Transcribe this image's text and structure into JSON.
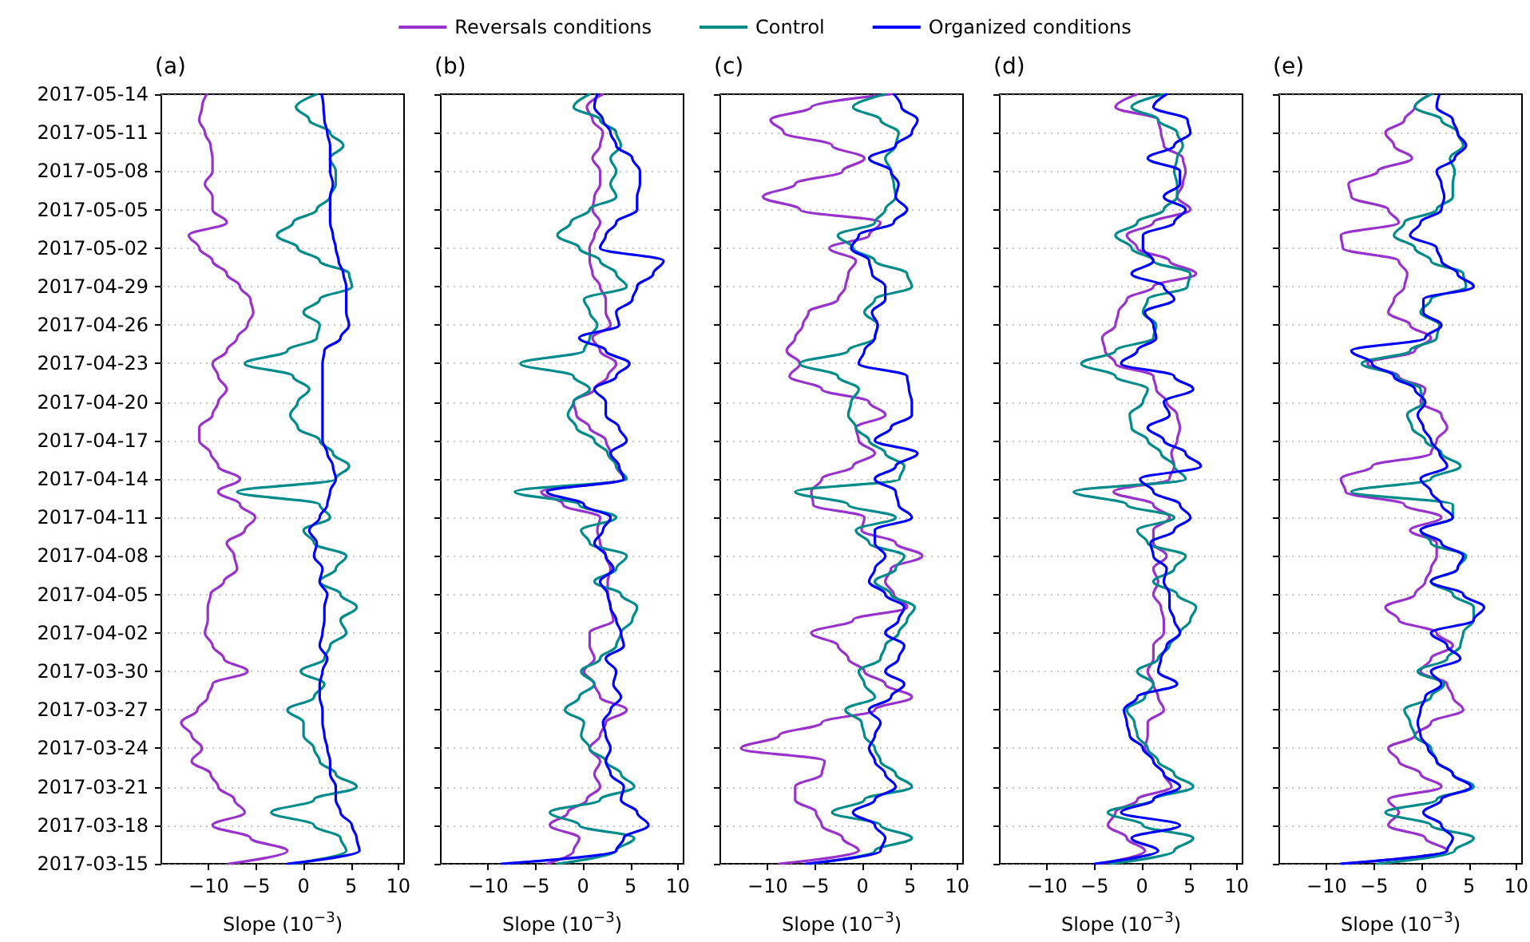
{
  "chart_data": [
    {
      "type": "line",
      "orientation": "horizontal",
      "title": "(a)",
      "xlabel": "Slope (10$^{−3}$)",
      "legend": "top",
      "grid": "y",
      "xlim": [
        -15,
        10.6
      ],
      "xticks": [
        -10,
        -5,
        0,
        5,
        10
      ],
      "ylim": [
        "2017-03-15",
        "2017-05-14"
      ],
      "yticks": [
        "2017-03-15",
        "2017-03-18",
        "2017-03-21",
        "2017-03-24",
        "2017-03-27",
        "2017-03-30",
        "2017-04-02",
        "2017-04-05",
        "2017-04-08",
        "2017-04-11",
        "2017-04-14",
        "2017-04-17",
        "2017-04-20",
        "2017-04-23",
        "2017-04-26",
        "2017-04-29",
        "2017-05-02",
        "2017-05-05",
        "2017-05-08",
        "2017-05-11",
        "2017-05-14"
      ],
      "x": [
        "2017-03-15",
        "2017-03-16",
        "2017-03-17",
        "2017-03-18",
        "2017-03-19",
        "2017-03-20",
        "2017-03-21",
        "2017-03-22",
        "2017-03-23",
        "2017-03-24",
        "2017-03-25",
        "2017-03-26",
        "2017-03-27",
        "2017-03-28",
        "2017-03-29",
        "2017-03-30",
        "2017-03-31",
        "2017-04-01",
        "2017-04-02",
        "2017-04-03",
        "2017-04-04",
        "2017-04-05",
        "2017-04-06",
        "2017-04-07",
        "2017-04-08",
        "2017-04-09",
        "2017-04-10",
        "2017-04-11",
        "2017-04-12",
        "2017-04-13",
        "2017-04-14",
        "2017-04-15",
        "2017-04-16",
        "2017-04-17",
        "2017-04-18",
        "2017-04-19",
        "2017-04-20",
        "2017-04-21",
        "2017-04-22",
        "2017-04-23",
        "2017-04-24",
        "2017-04-25",
        "2017-04-26",
        "2017-04-27",
        "2017-04-28",
        "2017-04-29",
        "2017-04-30",
        "2017-05-01",
        "2017-05-02",
        "2017-05-03",
        "2017-05-04",
        "2017-05-05",
        "2017-05-06",
        "2017-05-07",
        "2017-05-08",
        "2017-05-09",
        "2017-05-10",
        "2017-05-11",
        "2017-05-12",
        "2017-05-13",
        "2017-05-14"
      ],
      "series": [
        {
          "name": "Reversals conditions",
          "color": "#9932cc",
          "values": [
            -7.9,
            -1.7,
            -5.6,
            -9.6,
            -6.2,
            -7.3,
            -9.0,
            -9.8,
            -11.8,
            -10.7,
            -11.8,
            -12.9,
            -11.2,
            -10.1,
            -9.6,
            -5.9,
            -8.4,
            -9.6,
            -10.4,
            -10.1,
            -10.1,
            -9.8,
            -8.4,
            -7.0,
            -7.3,
            -8.1,
            -6.2,
            -5.1,
            -6.7,
            -9.0,
            -6.7,
            -9.0,
            -9.8,
            -11.0,
            -11.0,
            -9.6,
            -9.0,
            -8.1,
            -9.0,
            -9.6,
            -8.1,
            -7.0,
            -5.9,
            -5.3,
            -5.6,
            -6.7,
            -8.1,
            -9.6,
            -11.0,
            -12.1,
            -8.1,
            -9.6,
            -9.6,
            -10.4,
            -9.6,
            -9.6,
            -9.8,
            -10.4,
            -11.0,
            -10.7,
            -10.2
          ]
        },
        {
          "name": "Control",
          "color": "#008b8b",
          "values": [
            -1.1,
            4.5,
            3.9,
            1.1,
            -3.4,
            1.1,
            5.6,
            3.4,
            1.7,
            1.1,
            0,
            0,
            -1.7,
            1.1,
            2.2,
            -0.3,
            2.2,
            2.8,
            4.5,
            3.9,
            5.6,
            3.9,
            1.7,
            3.4,
            4.5,
            1.1,
            0,
            2.8,
            1.7,
            -7.0,
            3.4,
            4.8,
            3.1,
            1.7,
            -0.6,
            -1.4,
            -0.6,
            0.6,
            -1.1,
            -6.2,
            -1.7,
            1.4,
            1.7,
            0,
            1.7,
            5.1,
            4.8,
            1.7,
            -0.6,
            -2.8,
            -1.1,
            1.4,
            2.8,
            3.4,
            3.4,
            2.8,
            4.2,
            2.8,
            0.6,
            -0.8,
            1.4
          ]
        },
        {
          "name": "Organized conditions",
          "color": "#0000ff",
          "values": [
            -1.7,
            5.9,
            5.6,
            5.1,
            3.9,
            3.4,
            3.4,
            2.8,
            2.8,
            2.5,
            2.2,
            2.0,
            2.0,
            1.7,
            1.7,
            2.0,
            2.5,
            1.7,
            2.0,
            2.2,
            2.2,
            2.5,
            1.7,
            2.0,
            1.1,
            1.4,
            0.6,
            1.7,
            2.5,
            2.8,
            3.4,
            3.1,
            2.5,
            2.0,
            2.0,
            2.0,
            2.0,
            2.0,
            2.0,
            2.0,
            2.2,
            3.9,
            4.8,
            4.5,
            4.5,
            4.5,
            4.2,
            3.7,
            3.4,
            3.1,
            2.8,
            2.8,
            2.8,
            3.1,
            2.8,
            2.8,
            2.8,
            2.5,
            2.2,
            2.1,
            1.9
          ]
        }
      ]
    },
    {
      "type": "line",
      "orientation": "horizontal",
      "title": "(b)",
      "xlabel": "Slope (10$^{−3}$)",
      "grid": "y",
      "tick_labels": "x",
      "xlim": [
        -15,
        10.6
      ],
      "xticks": [
        -10,
        -5,
        0,
        5,
        10
      ],
      "ylim": [
        "2017-03-15",
        "2017-05-14"
      ],
      "yticks": [
        "2017-03-15",
        "2017-03-18",
        "2017-03-21",
        "2017-03-24",
        "2017-03-27",
        "2017-03-30",
        "2017-04-02",
        "2017-04-05",
        "2017-04-08",
        "2017-04-11",
        "2017-04-14",
        "2017-04-17",
        "2017-04-20",
        "2017-04-23",
        "2017-04-26",
        "2017-04-29",
        "2017-05-02",
        "2017-05-05",
        "2017-05-08",
        "2017-05-11",
        "2017-05-14"
      ],
      "x": [
        "2017-03-15",
        "2017-03-16",
        "2017-03-17",
        "2017-03-18",
        "2017-03-19",
        "2017-03-20",
        "2017-03-21",
        "2017-03-22",
        "2017-03-23",
        "2017-03-24",
        "2017-03-25",
        "2017-03-26",
        "2017-03-27",
        "2017-03-28",
        "2017-03-29",
        "2017-03-30",
        "2017-03-31",
        "2017-04-01",
        "2017-04-02",
        "2017-04-03",
        "2017-04-04",
        "2017-04-05",
        "2017-04-06",
        "2017-04-07",
        "2017-04-08",
        "2017-04-09",
        "2017-04-10",
        "2017-04-11",
        "2017-04-12",
        "2017-04-13",
        "2017-04-14",
        "2017-04-15",
        "2017-04-16",
        "2017-04-17",
        "2017-04-18",
        "2017-04-19",
        "2017-04-20",
        "2017-04-21",
        "2017-04-22",
        "2017-04-23",
        "2017-04-24",
        "2017-04-25",
        "2017-04-26",
        "2017-04-27",
        "2017-04-28",
        "2017-04-29",
        "2017-04-30",
        "2017-05-01",
        "2017-05-02",
        "2017-05-03",
        "2017-05-04",
        "2017-05-05",
        "2017-05-06",
        "2017-05-07",
        "2017-05-08",
        "2017-05-09",
        "2017-05-10",
        "2017-05-11",
        "2017-05-12",
        "2017-05-13",
        "2017-05-14"
      ],
      "series": [
        {
          "color": "#9932cc",
          "values": [
            -3.8,
            -1.0,
            -0.4,
            -3.5,
            -1.6,
            0.4,
            1.8,
            1.2,
            1.8,
            0.7,
            1.8,
            2.4,
            4.6,
            1.8,
            1.2,
            0.1,
            1.2,
            0.7,
            0.7,
            3.2,
            2.9,
            2.6,
            2.6,
            2.9,
            2.4,
            1.8,
            1.5,
            1.8,
            -2.1,
            -4.4,
            4.3,
            3.5,
            2.9,
            2.4,
            0.7,
            -0.7,
            -1.0,
            1.2,
            2.6,
            3.5,
            1.8,
            1.0,
            2.9,
            2.4,
            2.4,
            1.8,
            1.0,
            0.7,
            0.7,
            1.2,
            1.8,
            1.0,
            1.2,
            1.8,
            1.8,
            1.0,
            1.8,
            2.1,
            1.0,
            0.4,
            2.1
          ]
        },
        {
          "color": "#008b8b",
          "values": [
            -2.7,
            3.5,
            5.4,
            -0.4,
            -3.5,
            1.8,
            5.4,
            4.0,
            2.4,
            0.7,
            -0.2,
            0.1,
            -1.9,
            -0.4,
            1.2,
            -0.2,
            1.8,
            3.5,
            4.0,
            5.2,
            5.7,
            4.0,
            1.2,
            3.5,
            4.6,
            0.7,
            -0.2,
            3.5,
            -0.4,
            -7.2,
            4.6,
            3.5,
            2.6,
            1.2,
            -0.7,
            -1.6,
            -1.0,
            0.7,
            -1.0,
            -6.6,
            0.1,
            0.7,
            1.5,
            0.7,
            0.1,
            4.6,
            3.5,
            1.8,
            -0.4,
            -2.7,
            -1.3,
            0.7,
            3.5,
            2.9,
            3.5,
            2.9,
            4.0,
            3.5,
            1.8,
            -1.0,
            0.7
          ]
        },
        {
          "color": "#0000ff",
          "values": [
            -8.6,
            3.5,
            4.3,
            6.9,
            5.7,
            4.0,
            4.3,
            2.9,
            2.4,
            2.9,
            2.4,
            2.1,
            2.9,
            4.0,
            3.2,
            3.5,
            2.4,
            4.3,
            4.0,
            3.5,
            2.9,
            2.6,
            1.8,
            3.2,
            2.4,
            1.2,
            2.1,
            2.9,
            0.1,
            -3.8,
            4.3,
            3.8,
            2.9,
            4.6,
            3.8,
            2.4,
            2.4,
            1.2,
            3.5,
            4.9,
            2.4,
            -0.4,
            3.8,
            3.5,
            5.2,
            5.7,
            7.4,
            8.5,
            1.8,
            2.4,
            3.5,
            5.7,
            5.7,
            6.0,
            6.0,
            5.2,
            3.5,
            2.9,
            2.1,
            1.2,
            1.5
          ]
        }
      ]
    },
    {
      "type": "line",
      "orientation": "horizontal",
      "title": "(c)",
      "xlabel": "Slope (10$^{−3}$)",
      "grid": "y",
      "tick_labels": "x",
      "xlim": [
        -15,
        10.6
      ],
      "xticks": [
        -10,
        -5,
        0,
        5,
        10
      ],
      "ylim": [
        "2017-03-15",
        "2017-05-14"
      ],
      "yticks": [
        "2017-03-15",
        "2017-03-18",
        "2017-03-21",
        "2017-03-24",
        "2017-03-27",
        "2017-03-30",
        "2017-04-02",
        "2017-04-05",
        "2017-04-08",
        "2017-04-11",
        "2017-04-14",
        "2017-04-17",
        "2017-04-20",
        "2017-04-23",
        "2017-04-26",
        "2017-04-29",
        "2017-05-02",
        "2017-05-05",
        "2017-05-08",
        "2017-05-11",
        "2017-05-14"
      ],
      "x": [
        "2017-03-15",
        "2017-03-16",
        "2017-03-17",
        "2017-03-18",
        "2017-03-19",
        "2017-03-20",
        "2017-03-21",
        "2017-03-22",
        "2017-03-23",
        "2017-03-24",
        "2017-03-25",
        "2017-03-26",
        "2017-03-27",
        "2017-03-28",
        "2017-03-29",
        "2017-03-30",
        "2017-03-31",
        "2017-04-01",
        "2017-04-02",
        "2017-04-03",
        "2017-04-04",
        "2017-04-05",
        "2017-04-06",
        "2017-04-07",
        "2017-04-08",
        "2017-04-09",
        "2017-04-10",
        "2017-04-11",
        "2017-04-12",
        "2017-04-13",
        "2017-04-14",
        "2017-04-15",
        "2017-04-16",
        "2017-04-17",
        "2017-04-18",
        "2017-04-19",
        "2017-04-20",
        "2017-04-21",
        "2017-04-22",
        "2017-04-23",
        "2017-04-24",
        "2017-04-25",
        "2017-04-26",
        "2017-04-27",
        "2017-04-28",
        "2017-04-29",
        "2017-04-30",
        "2017-05-01",
        "2017-05-02",
        "2017-05-03",
        "2017-05-04",
        "2017-05-05",
        "2017-05-06",
        "2017-05-07",
        "2017-05-08",
        "2017-05-09",
        "2017-05-10",
        "2017-05-11",
        "2017-05-12",
        "2017-05-13",
        "2017-05-14"
      ],
      "series": [
        {
          "color": "#9932cc",
          "values": [
            -8.8,
            -0.4,
            -2.1,
            -4.3,
            -4.9,
            -7.1,
            -7.1,
            -4.3,
            -4.0,
            -12.8,
            -8.8,
            -4.3,
            1.3,
            5.2,
            2.4,
            0.2,
            -1.5,
            -2.6,
            -5.4,
            -1.0,
            4.7,
            3.3,
            2.4,
            3.0,
            6.3,
            3.5,
            -0.1,
            0.2,
            -5.2,
            -5.4,
            -4.3,
            -1.0,
            1.3,
            -0.4,
            -0.7,
            2.4,
            0.7,
            -4.3,
            -7.7,
            -6.6,
            -8.0,
            -7.1,
            -6.3,
            -5.7,
            -2.6,
            -1.8,
            -1.5,
            -0.7,
            -3.5,
            0.7,
            1.9,
            -6.6,
            -10.5,
            -7.1,
            -2.1,
            0.2,
            -3.2,
            -8.3,
            -9.7,
            -5.4,
            3.0
          ]
        },
        {
          "color": "#008b8b",
          "values": [
            -5.4,
            1.3,
            5.2,
            1.9,
            -3.2,
            0.2,
            5.2,
            3.5,
            1.9,
            1.3,
            0.2,
            -0.1,
            -1.8,
            1.3,
            0.2,
            -0.4,
            1.9,
            2.4,
            3.8,
            4.7,
            5.5,
            3.0,
            1.3,
            3.5,
            4.4,
            0.7,
            -0.7,
            3.5,
            -1.5,
            -7.1,
            3.9,
            4.4,
            2.4,
            0.7,
            -0.7,
            -1.5,
            -1.2,
            -0.4,
            -2.6,
            -6.6,
            -1.5,
            1.3,
            1.6,
            0.2,
            1.3,
            5.2,
            4.7,
            1.3,
            -1.0,
            -2.6,
            1.3,
            2.4,
            3.5,
            3.3,
            3.0,
            2.4,
            3.5,
            3.8,
            1.9,
            -1.0,
            2.4
          ]
        },
        {
          "color": "#0000ff",
          "values": [
            -6.0,
            1.9,
            2.4,
            1.3,
            -1.0,
            1.3,
            3.5,
            2.4,
            1.3,
            0.7,
            1.3,
            1.9,
            0.7,
            3.0,
            4.4,
            2.4,
            3.8,
            4.4,
            2.4,
            3.8,
            4.4,
            2.4,
            0.7,
            1.3,
            2.4,
            1.3,
            1.3,
            5.2,
            3.8,
            3.5,
            1.3,
            3.5,
            5.8,
            1.3,
            3.0,
            5.2,
            5.2,
            4.9,
            4.7,
            -0.4,
            0.2,
            1.3,
            1.6,
            1.0,
            2.4,
            2.4,
            1.0,
            0.7,
            -1.2,
            -0.4,
            3.3,
            4.7,
            3.5,
            3.8,
            3.0,
            0.7,
            3.5,
            5.2,
            5.8,
            4.1,
            3.3
          ]
        }
      ]
    },
    {
      "type": "line",
      "orientation": "horizontal",
      "title": "(d)",
      "xlabel": "Slope (10$^{−3}$)",
      "grid": "y",
      "tick_labels": "x",
      "xlim": [
        -15,
        10.6
      ],
      "xticks": [
        -10,
        -5,
        0,
        5,
        10
      ],
      "ylim": [
        "2017-03-15",
        "2017-05-14"
      ],
      "yticks": [
        "2017-03-15",
        "2017-03-18",
        "2017-03-21",
        "2017-03-24",
        "2017-03-27",
        "2017-03-30",
        "2017-04-02",
        "2017-04-05",
        "2017-04-08",
        "2017-04-11",
        "2017-04-14",
        "2017-04-17",
        "2017-04-20",
        "2017-04-23",
        "2017-04-26",
        "2017-04-29",
        "2017-05-02",
        "2017-05-05",
        "2017-05-08",
        "2017-05-11",
        "2017-05-14"
      ],
      "x": [
        "2017-03-15",
        "2017-03-16",
        "2017-03-17",
        "2017-03-18",
        "2017-03-19",
        "2017-03-20",
        "2017-03-21",
        "2017-03-22",
        "2017-03-23",
        "2017-03-24",
        "2017-03-25",
        "2017-03-26",
        "2017-03-27",
        "2017-03-28",
        "2017-03-29",
        "2017-03-30",
        "2017-03-31",
        "2017-04-01",
        "2017-04-02",
        "2017-04-03",
        "2017-04-04",
        "2017-04-05",
        "2017-04-06",
        "2017-04-07",
        "2017-04-08",
        "2017-04-09",
        "2017-04-10",
        "2017-04-11",
        "2017-04-12",
        "2017-04-13",
        "2017-04-14",
        "2017-04-15",
        "2017-04-16",
        "2017-04-17",
        "2017-04-18",
        "2017-04-19",
        "2017-04-20",
        "2017-04-21",
        "2017-04-22",
        "2017-04-23",
        "2017-04-24",
        "2017-04-25",
        "2017-04-26",
        "2017-04-27",
        "2017-04-28",
        "2017-04-29",
        "2017-04-30",
        "2017-05-01",
        "2017-05-02",
        "2017-05-03",
        "2017-05-04",
        "2017-05-05",
        "2017-05-06",
        "2017-05-07",
        "2017-05-08",
        "2017-05-09",
        "2017-05-10",
        "2017-05-11",
        "2017-05-12",
        "2017-05-13",
        "2017-05-14"
      ],
      "series": [
        {
          "color": "#9932cc",
          "values": [
            -4.4,
            0.3,
            -1.6,
            -3.6,
            -2.8,
            -0.5,
            3.1,
            2.3,
            1.2,
            0.3,
            0.6,
            0.6,
            2.3,
            1.7,
            1.2,
            0.6,
            1.2,
            1.2,
            2.3,
            2.3,
            2.0,
            1.2,
            1.7,
            1.2,
            2.6,
            1.2,
            1.2,
            2.9,
            1.2,
            -3.0,
            2.9,
            3.4,
            3.1,
            3.7,
            4.0,
            3.7,
            2.6,
            1.5,
            1.2,
            -2.8,
            -3.9,
            -4.2,
            -2.8,
            -2.5,
            -1.6,
            1.2,
            5.7,
            2.9,
            -0.5,
            -1.6,
            1.2,
            5.1,
            3.7,
            4.3,
            4.6,
            4.3,
            2.3,
            2.0,
            1.7,
            -2.8,
            -0.5
          ]
        },
        {
          "color": "#008b8b",
          "values": [
            -3.3,
            3.4,
            5.4,
            0.1,
            -3.6,
            1.2,
            5.4,
            3.4,
            1.7,
            0.6,
            -0.5,
            -0.8,
            -1.6,
            0.3,
            1.2,
            -0.5,
            1.7,
            2.9,
            4.0,
            5.1,
            5.7,
            3.7,
            1.2,
            3.4,
            4.6,
            0.6,
            -0.5,
            3.4,
            -1.6,
            -7.2,
            4.6,
            3.4,
            2.0,
            0.6,
            -1.1,
            -1.3,
            0.1,
            0.6,
            -2.8,
            -6.4,
            -2.8,
            1.2,
            1.5,
            0.1,
            0.6,
            4.8,
            5.1,
            1.2,
            -1.1,
            -2.8,
            -0.5,
            2.3,
            3.7,
            3.7,
            3.4,
            3.7,
            4.3,
            3.7,
            1.7,
            -1.1,
            2.3
          ]
        },
        {
          "color": "#0000ff",
          "values": [
            -5.0,
            1.7,
            -1.1,
            4.0,
            -2.2,
            1.2,
            4.0,
            2.3,
            1.2,
            0.1,
            -1.3,
            -1.6,
            -1.9,
            -0.5,
            3.7,
            1.7,
            2.0,
            2.6,
            4.0,
            3.4,
            2.9,
            2.9,
            2.3,
            2.6,
            1.2,
            0.9,
            3.4,
            5.1,
            4.0,
            1.2,
            -0.2,
            6.2,
            4.6,
            2.3,
            0.6,
            2.9,
            2.3,
            5.4,
            3.4,
            -2.2,
            -0.5,
            1.5,
            1.2,
            0.3,
            3.4,
            2.3,
            -1.1,
            1.2,
            0.1,
            0.1,
            3.4,
            4.6,
            2.3,
            4.0,
            4.0,
            0.6,
            3.4,
            5.1,
            4.8,
            1.2,
            2.6
          ]
        }
      ]
    },
    {
      "type": "line",
      "orientation": "horizontal",
      "title": "(e)",
      "xlabel": "Slope (10$^{−3}$)",
      "grid": "y",
      "tick_labels": "x",
      "xlim": [
        -15,
        10.6
      ],
      "xticks": [
        -10,
        -5,
        0,
        5,
        10
      ],
      "ylim": [
        "2017-03-15",
        "2017-05-14"
      ],
      "yticks": [
        "2017-03-15",
        "2017-03-18",
        "2017-03-21",
        "2017-03-24",
        "2017-03-27",
        "2017-03-30",
        "2017-04-02",
        "2017-04-05",
        "2017-04-08",
        "2017-04-11",
        "2017-04-14",
        "2017-04-17",
        "2017-04-20",
        "2017-04-23",
        "2017-04-26",
        "2017-04-29",
        "2017-05-02",
        "2017-05-05",
        "2017-05-08",
        "2017-05-11",
        "2017-05-14"
      ],
      "x": [
        "2017-03-15",
        "2017-03-16",
        "2017-03-17",
        "2017-03-18",
        "2017-03-19",
        "2017-03-20",
        "2017-03-21",
        "2017-03-22",
        "2017-03-23",
        "2017-03-24",
        "2017-03-25",
        "2017-03-26",
        "2017-03-27",
        "2017-03-28",
        "2017-03-29",
        "2017-03-30",
        "2017-03-31",
        "2017-04-01",
        "2017-04-02",
        "2017-04-03",
        "2017-04-04",
        "2017-04-05",
        "2017-04-06",
        "2017-04-07",
        "2017-04-08",
        "2017-04-09",
        "2017-04-10",
        "2017-04-11",
        "2017-04-12",
        "2017-04-13",
        "2017-04-14",
        "2017-04-15",
        "2017-04-16",
        "2017-04-17",
        "2017-04-18",
        "2017-04-19",
        "2017-04-20",
        "2017-04-21",
        "2017-04-22",
        "2017-04-23",
        "2017-04-24",
        "2017-04-25",
        "2017-04-26",
        "2017-04-27",
        "2017-04-28",
        "2017-04-29",
        "2017-04-30",
        "2017-05-01",
        "2017-05-02",
        "2017-05-03",
        "2017-05-04",
        "2017-05-05",
        "2017-05-06",
        "2017-05-07",
        "2017-05-08",
        "2017-05-09",
        "2017-05-10",
        "2017-05-11",
        "2017-05-12",
        "2017-05-13",
        "2017-05-14"
      ],
      "series": [
        {
          "color": "#9932cc",
          "values": [
            -8.5,
            2.7,
            0.4,
            -3.5,
            -2.4,
            -3.5,
            2.1,
            -0.1,
            -2.4,
            -3.5,
            -0.7,
            1.0,
            4.4,
            3.3,
            2.7,
            -0.1,
            1.0,
            3.3,
            1.6,
            -2.4,
            -3.8,
            -0.7,
            0.4,
            1.0,
            1.6,
            1.6,
            -1.2,
            2.1,
            -1.8,
            -8.0,
            -8.5,
            -5.2,
            1.0,
            1.6,
            2.7,
            2.1,
            -0.1,
            0.4,
            -2.4,
            -5.7,
            -0.7,
            1.0,
            -1.2,
            -3.5,
            -2.9,
            -1.8,
            -1.5,
            -2.4,
            -8.3,
            -8.5,
            -2.4,
            -3.5,
            -7.4,
            -7.7,
            -4.6,
            -1.0,
            -2.9,
            -3.8,
            -1.8,
            -0.7,
            1.0
          ]
        },
        {
          "color": "#008b8b",
          "values": [
            -4.6,
            3.5,
            5.5,
            1.0,
            -3.8,
            1.6,
            5.5,
            3.3,
            1.6,
            1.0,
            -0.7,
            -1.2,
            -1.8,
            1.0,
            2.4,
            -0.4,
            2.7,
            4.1,
            4.4,
            5.5,
            5.5,
            3.3,
            1.0,
            3.8,
            4.7,
            1.0,
            -0.1,
            3.3,
            3.3,
            -7.4,
            1.0,
            4.1,
            2.1,
            0.4,
            -1.0,
            -1.5,
            0.2,
            -0.1,
            -2.6,
            -6.3,
            -1.2,
            1.6,
            1.9,
            -0.1,
            1.0,
            4.7,
            4.4,
            1.0,
            -0.7,
            -2.9,
            -1.8,
            1.6,
            3.3,
            3.3,
            3.5,
            3.0,
            4.4,
            3.8,
            2.1,
            -0.7,
            1.0
          ]
        },
        {
          "color": "#0000ff",
          "values": [
            -8.5,
            2.7,
            3.3,
            2.1,
            0.2,
            2.1,
            5.2,
            3.3,
            1.6,
            0.7,
            -0.1,
            -0.4,
            -0.1,
            0.4,
            2.1,
            1.0,
            4.1,
            2.7,
            1.0,
            5.5,
            6.6,
            4.4,
            1.0,
            3.8,
            4.4,
            2.1,
            -0.1,
            3.3,
            2.1,
            1.0,
            -0.1,
            2.7,
            1.9,
            1.0,
            0.2,
            -0.4,
            0.4,
            -0.7,
            -2.9,
            -5.2,
            -7.4,
            0.4,
            2.1,
            0.2,
            0.2,
            5.5,
            3.8,
            2.1,
            1.6,
            -1.2,
            -0.1,
            2.1,
            2.4,
            2.1,
            1.6,
            3.5,
            4.7,
            3.8,
            3.3,
            1.6,
            1.9
          ]
        }
      ]
    }
  ]
}
